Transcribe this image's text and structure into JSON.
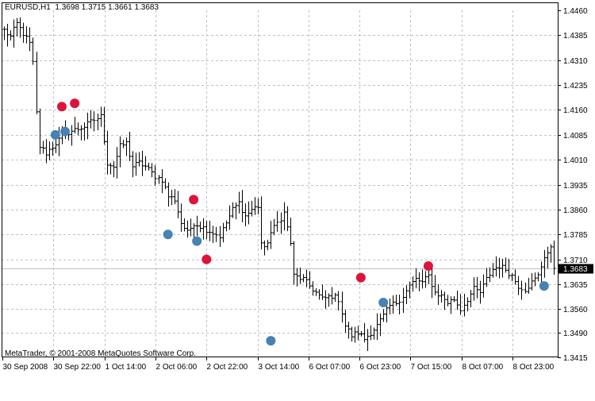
{
  "header": {
    "symbol": "EURUSD,H1",
    "ohlc": "1.3698 1.3715 1.3661 1.3683"
  },
  "footer": {
    "copyright": "MetaTrader, © 2001-2008 MetaQuotes Software Corp."
  },
  "colors": {
    "background": "#ffffff",
    "bars": "#000000",
    "grid": "#c0c0c0",
    "up_marker": "#dc143c",
    "down_marker": "#4682b4",
    "current_price_line": "#c0c0c0"
  },
  "chart_data": {
    "type": "ohlc",
    "title": "EURUSD,H1",
    "current_price": 1.3683,
    "current_price_label": "1.3683",
    "grid": true,
    "ylim": [
      1.3415,
      1.446
    ],
    "y_ticks": [
      1.446,
      1.4385,
      1.431,
      1.4235,
      1.416,
      1.4085,
      1.401,
      1.3935,
      1.386,
      1.3785,
      1.371,
      1.3635,
      1.356,
      1.349,
      1.3415
    ],
    "y_tick_labels": [
      "1.4460",
      "1.4385",
      "1.4310",
      "1.4235",
      "1.4160",
      "1.4085",
      "1.4010",
      "1.3935",
      "1.3860",
      "1.3785",
      "1.3710",
      "1.3635",
      "1.3560",
      "1.3490",
      "1.3415"
    ],
    "x_tick_labels": [
      "30 Sep 2008",
      "30 Sep 22:00",
      "1 Oct 14:00",
      "2 Oct 06:00",
      "2 Oct 22:00",
      "3 Oct 14:00",
      "6 Oct 07:00",
      "6 Oct 23:00",
      "7 Oct 15:00",
      "8 Oct 07:00",
      "8 Oct 23:00"
    ],
    "bars_count": 172,
    "anchors": [
      [
        0,
        1.44
      ],
      [
        2,
        1.438
      ],
      [
        4,
        1.442
      ],
      [
        6,
        1.439
      ],
      [
        8,
        1.436
      ],
      [
        9,
        1.43
      ],
      [
        10,
        1.415
      ],
      [
        11,
        1.405
      ],
      [
        13,
        1.403
      ],
      [
        16,
        1.406
      ],
      [
        19,
        1.409
      ],
      [
        22,
        1.41
      ],
      [
        25,
        1.411
      ],
      [
        28,
        1.413
      ],
      [
        30,
        1.414
      ],
      [
        32,
        1.4
      ],
      [
        34,
        1.399
      ],
      [
        36,
        1.405
      ],
      [
        38,
        1.406
      ],
      [
        40,
        1.399
      ],
      [
        42,
        1.4
      ],
      [
        44,
        1.399
      ],
      [
        47,
        1.396
      ],
      [
        49,
        1.395
      ],
      [
        51,
        1.39
      ],
      [
        53,
        1.389
      ],
      [
        55,
        1.382
      ],
      [
        57,
        1.379
      ],
      [
        59,
        1.382
      ],
      [
        61,
        1.381
      ],
      [
        63,
        1.38
      ],
      [
        65,
        1.379
      ],
      [
        67,
        1.378
      ],
      [
        69,
        1.382
      ],
      [
        71,
        1.386
      ],
      [
        73,
        1.388
      ],
      [
        75,
        1.384
      ],
      [
        77,
        1.386
      ],
      [
        79,
        1.387
      ],
      [
        80,
        1.376
      ],
      [
        81,
        1.374
      ],
      [
        83,
        1.379
      ],
      [
        85,
        1.382
      ],
      [
        87,
        1.385
      ],
      [
        89,
        1.376
      ],
      [
        90,
        1.366
      ],
      [
        93,
        1.365
      ],
      [
        96,
        1.362
      ],
      [
        99,
        1.359
      ],
      [
        102,
        1.36
      ],
      [
        104,
        1.359
      ],
      [
        106,
        1.351
      ],
      [
        108,
        1.348
      ],
      [
        110,
        1.349
      ],
      [
        112,
        1.347
      ],
      [
        114,
        1.349
      ],
      [
        116,
        1.351
      ],
      [
        118,
        1.354
      ],
      [
        120,
        1.357
      ],
      [
        122,
        1.358
      ],
      [
        124,
        1.36
      ],
      [
        126,
        1.363
      ],
      [
        128,
        1.365
      ],
      [
        130,
        1.364
      ],
      [
        132,
        1.366
      ],
      [
        134,
        1.361
      ],
      [
        136,
        1.36
      ],
      [
        138,
        1.358
      ],
      [
        140,
        1.359
      ],
      [
        142,
        1.356
      ],
      [
        144,
        1.359
      ],
      [
        146,
        1.362
      ],
      [
        148,
        1.361
      ],
      [
        150,
        1.365
      ],
      [
        152,
        1.368
      ],
      [
        154,
        1.369
      ],
      [
        156,
        1.368
      ],
      [
        158,
        1.366
      ],
      [
        160,
        1.363
      ],
      [
        162,
        1.362
      ],
      [
        164,
        1.364
      ],
      [
        166,
        1.366
      ],
      [
        168,
        1.372
      ],
      [
        170,
        1.374
      ],
      [
        171,
        1.3683
      ]
    ],
    "buy_markers": [
      {
        "x": 16,
        "y": 1.4085
      },
      {
        "x": 19,
        "y": 1.4095
      },
      {
        "x": 51,
        "y": 1.3785
      },
      {
        "x": 60,
        "y": 1.3765
      },
      {
        "x": 83,
        "y": 1.3465
      },
      {
        "x": 118,
        "y": 1.358
      },
      {
        "x": 168,
        "y": 1.363
      }
    ],
    "sell_markers": [
      {
        "x": 18,
        "y": 1.417
      },
      {
        "x": 22,
        "y": 1.418
      },
      {
        "x": 59,
        "y": 1.389
      },
      {
        "x": 63,
        "y": 1.371
      },
      {
        "x": 111,
        "y": 1.3655
      },
      {
        "x": 132,
        "y": 1.369
      }
    ]
  }
}
